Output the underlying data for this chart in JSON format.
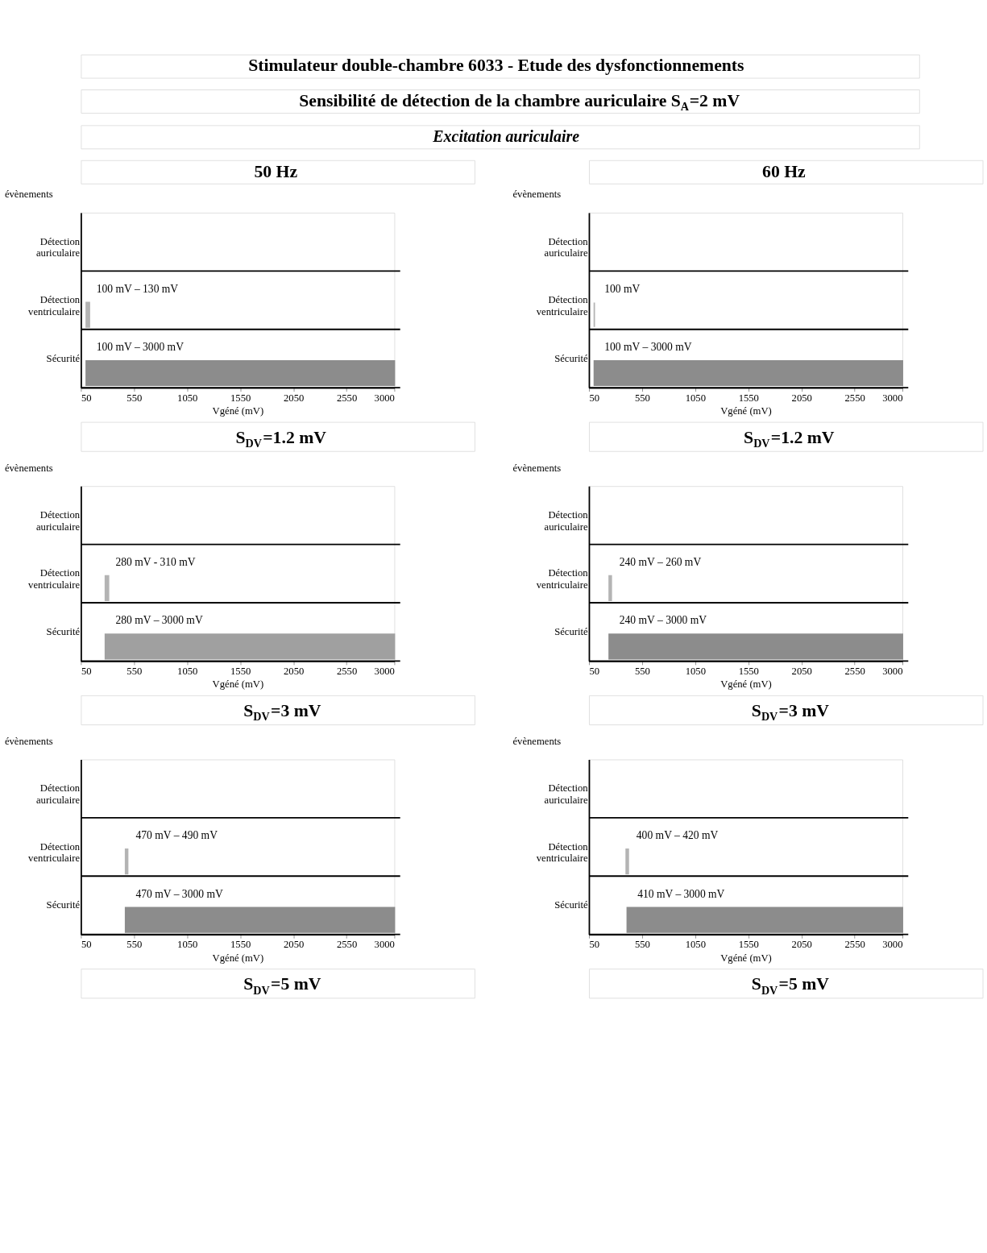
{
  "chart_data": [
    {
      "type": "bar",
      "orientation": "horizontal",
      "subtitle": "50 Hz",
      "title": "S$_{DV}$=1.2 mV",
      "xlabel": "Vgéné (mV)",
      "ylabel": "évènements",
      "categories": [
        "Détection auriculaire",
        "Détection ventriculaire",
        "Sécurité"
      ],
      "values": [
        null,
        30,
        2900
      ],
      "base": [
        null,
        100,
        100
      ],
      "colors": [
        null,
        "#b4b4b4",
        "#8c8c8c"
      ],
      "xlim": [
        50,
        3000
      ],
      "xticks": [
        50,
        550,
        1050,
        1550,
        2050,
        2550,
        3000
      ],
      "grid": "y",
      "annotations": [
        "Stimulateur double-chambre 6033 - Etude des dysfonctionnements",
        "Sensibilité de détection de la chambre auriculaire S$_{A}$=2 mV",
        "Excitation auriculaire",
        {
          "text": "100 mV – 130 mV",
          "x": 100,
          "y": "Détection ventriculaire"
        },
        {
          "text": "100 mV – 3000 mV",
          "x": 100,
          "y": "Sécurité"
        }
      ]
    },
    {
      "type": "bar",
      "orientation": "horizontal",
      "subtitle": "60 Hz",
      "title": "S$_{DV}$=1.2 mV",
      "xlabel": "Vgéné (mV)",
      "ylabel": "évènements",
      "categories": [
        "Détection auriculaire",
        "Détection ventriculaire",
        "Sécurité"
      ],
      "values": [
        null,
        0,
        2900
      ],
      "base": [
        null,
        100,
        100
      ],
      "colors": [
        null,
        "#b4b4b4",
        "#8c8c8c"
      ],
      "xlim": [
        50,
        3000
      ],
      "xticks": [
        50,
        550,
        1050,
        1550,
        2050,
        2550,
        3000
      ],
      "grid": "y",
      "annotations": [
        {
          "text": "100 mV",
          "x": 100,
          "y": "Détection ventriculaire"
        },
        {
          "text": "100 mV – 3000 mV",
          "x": 100,
          "y": "Sécurité"
        }
      ]
    },
    {
      "type": "bar",
      "orientation": "horizontal",
      "title": "S$_{DV}$=3 mV",
      "xlabel": "Vgéné (mV)",
      "ylabel": "évènements",
      "categories": [
        "Détection auriculaire",
        "Détection ventriculaire",
        "Sécurité"
      ],
      "values": [
        null,
        30,
        2720
      ],
      "base": [
        null,
        280,
        280
      ],
      "colors": [
        null,
        "#b4b4b4",
        "#a0a0a0"
      ],
      "xlim": [
        50,
        3000
      ],
      "xticks": [
        50,
        550,
        1050,
        1550,
        2050,
        2550,
        3000
      ],
      "grid": "y",
      "annotations": [
        {
          "text": "280 mV - 310 mV",
          "x": 280,
          "y": "Détection ventriculaire"
        },
        {
          "text": "280 mV – 3000 mV",
          "x": 280,
          "y": "Sécurité"
        }
      ]
    },
    {
      "type": "bar",
      "orientation": "horizontal",
      "title": "S$_{DV}$=3 mV",
      "xlabel": "Vgéné (mV)",
      "ylabel": "évènements",
      "categories": [
        "Détection auriculaire",
        "Détection ventriculaire",
        "Sécurité"
      ],
      "values": [
        null,
        20,
        2760
      ],
      "base": [
        null,
        240,
        240
      ],
      "colors": [
        null,
        "#b4b4b4",
        "#8c8c8c"
      ],
      "xlim": [
        50,
        3000
      ],
      "xticks": [
        50,
        550,
        1050,
        1550,
        2050,
        2550,
        3000
      ],
      "grid": "y",
      "annotations": [
        {
          "text": "240 mV – 260 mV",
          "x": 240,
          "y": "Détection ventriculaire"
        },
        {
          "text": "240 mV – 3000 mV",
          "x": 240,
          "y": "Sécurité"
        }
      ]
    },
    {
      "type": "bar",
      "orientation": "horizontal",
      "title": "S$_{DV}$=5 mV",
      "xlabel": "Vgéné (mV)",
      "ylabel": "évènements",
      "categories": [
        "Détection auriculaire",
        "Détection ventriculaire",
        "Sécurité"
      ],
      "values": [
        null,
        20,
        2530
      ],
      "base": [
        null,
        470,
        470
      ],
      "colors": [
        null,
        "#b4b4b4",
        "#8c8c8c"
      ],
      "xlim": [
        50,
        3000
      ],
      "xticks": [
        50,
        550,
        1050,
        1550,
        2050,
        2550,
        3000
      ],
      "grid": "y",
      "annotations": [
        {
          "text": "470 mV – 490 mV",
          "x": 470,
          "y": "Détection ventriculaire"
        },
        {
          "text": "470 mV – 3000 mV",
          "x": 470,
          "y": "Sécurité"
        }
      ]
    },
    {
      "type": "bar",
      "orientation": "horizontal",
      "title": "S$_{DV}$=5 mV",
      "xlabel": "Vgéné (mV)",
      "ylabel": "évènements",
      "categories": [
        "Détection auriculaire",
        "Détection ventriculaire",
        "Sécurité"
      ],
      "values": [
        null,
        20,
        2590
      ],
      "base": [
        null,
        400,
        410
      ],
      "colors": [
        null,
        "#b4b4b4",
        "#8c8c8c"
      ],
      "xlim": [
        50,
        3000
      ],
      "xticks": [
        50,
        550,
        1050,
        1550,
        2050,
        2550,
        3000
      ],
      "grid": "y",
      "annotations": [
        {
          "text": "400 mV – 420 mV",
          "x": 400,
          "y": "Détection ventriculaire"
        },
        {
          "text": "410 mV – 3000 mV",
          "x": 410,
          "y": "Sécurité"
        }
      ]
    }
  ]
}
